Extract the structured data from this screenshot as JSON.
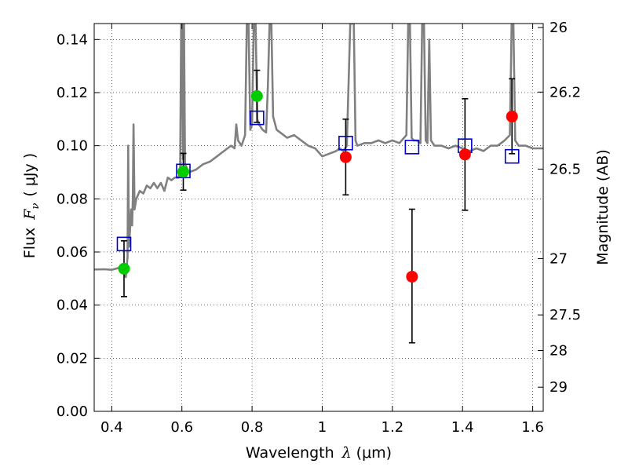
{
  "chart_data": {
    "type": "scatter",
    "xlabel": "Wavelength",
    "xlabel_symbol": "λ",
    "xlabel_unit": "(μm)",
    "ylabel": "Flux",
    "ylabel_symbol": "F",
    "ylabel_subscript": "ν",
    "ylabel_unit": "( μJy )",
    "y2label": "Magnitude (AB)",
    "xlim": [
      0.35,
      1.63
    ],
    "ylim": [
      0.0,
      0.146
    ],
    "grid": true,
    "x_ticks": [
      0.4,
      0.6,
      0.8,
      1.0,
      1.2,
      1.4,
      1.6
    ],
    "x_tick_labels": [
      "0.4",
      "0.6",
      "0.8",
      "1",
      "1.2",
      "1.4",
      "1.6"
    ],
    "y_ticks": [
      0.0,
      0.02,
      0.04,
      0.06,
      0.08,
      0.1,
      0.12,
      0.14
    ],
    "y_tick_labels": [
      "0.00",
      "0.02",
      "0.04",
      "0.06",
      "0.08",
      "0.10",
      "0.12",
      "0.14"
    ],
    "y2_ticks": [
      {
        "label": "26",
        "flux": 0.1445
      },
      {
        "label": "26.2",
        "flux": 0.1202
      },
      {
        "label": "26.5",
        "flux": 0.0912
      },
      {
        "label": "27",
        "flux": 0.0575
      },
      {
        "label": "27.5",
        "flux": 0.0363
      },
      {
        "label": "28",
        "flux": 0.0229
      },
      {
        "label": "29",
        "flux": 0.0091
      }
    ],
    "series": [
      {
        "name": "Model spectrum",
        "kind": "line",
        "color": "#808080",
        "points": [
          [
            0.35,
            0.0534
          ],
          [
            0.38,
            0.0535
          ],
          [
            0.4,
            0.0533
          ],
          [
            0.42,
            0.054
          ],
          [
            0.43,
            0.053
          ],
          [
            0.435,
            0.052
          ],
          [
            0.44,
            0.0505
          ],
          [
            0.445,
            0.058
          ],
          [
            0.447,
            0.1
          ],
          [
            0.449,
            0.062
          ],
          [
            0.452,
            0.068
          ],
          [
            0.455,
            0.076
          ],
          [
            0.458,
            0.07
          ],
          [
            0.46,
            0.08
          ],
          [
            0.462,
            0.108
          ],
          [
            0.465,
            0.076
          ],
          [
            0.47,
            0.08
          ],
          [
            0.48,
            0.083
          ],
          [
            0.49,
            0.082
          ],
          [
            0.5,
            0.085
          ],
          [
            0.51,
            0.084
          ],
          [
            0.52,
            0.086
          ],
          [
            0.53,
            0.084
          ],
          [
            0.54,
            0.086
          ],
          [
            0.55,
            0.083
          ],
          [
            0.56,
            0.088
          ],
          [
            0.57,
            0.087
          ],
          [
            0.58,
            0.088
          ],
          [
            0.59,
            0.088
          ],
          [
            0.595,
            0.09
          ],
          [
            0.598,
            0.146
          ],
          [
            0.6,
            0.146
          ],
          [
            0.603,
            0.095
          ],
          [
            0.606,
            0.146
          ],
          [
            0.609,
            0.093
          ],
          [
            0.62,
            0.09
          ],
          [
            0.64,
            0.091
          ],
          [
            0.66,
            0.093
          ],
          [
            0.68,
            0.094
          ],
          [
            0.7,
            0.096
          ],
          [
            0.72,
            0.098
          ],
          [
            0.74,
            0.1
          ],
          [
            0.75,
            0.099
          ],
          [
            0.755,
            0.108
          ],
          [
            0.76,
            0.102
          ],
          [
            0.77,
            0.1
          ],
          [
            0.78,
            0.104
          ],
          [
            0.785,
            0.146
          ],
          [
            0.79,
            0.146
          ],
          [
            0.795,
            0.106
          ],
          [
            0.8,
            0.108
          ],
          [
            0.805,
            0.146
          ],
          [
            0.81,
            0.146
          ],
          [
            0.815,
            0.11
          ],
          [
            0.82,
            0.108
          ],
          [
            0.83,
            0.106
          ],
          [
            0.84,
            0.105
          ],
          [
            0.845,
            0.122
          ],
          [
            0.85,
            0.146
          ],
          [
            0.855,
            0.146
          ],
          [
            0.86,
            0.111
          ],
          [
            0.87,
            0.106
          ],
          [
            0.88,
            0.105
          ],
          [
            0.9,
            0.103
          ],
          [
            0.92,
            0.104
          ],
          [
            0.94,
            0.102
          ],
          [
            0.96,
            0.1
          ],
          [
            0.98,
            0.099
          ],
          [
            1.0,
            0.096
          ],
          [
            1.02,
            0.097
          ],
          [
            1.04,
            0.098
          ],
          [
            1.05,
            0.099
          ],
          [
            1.06,
            0.098
          ],
          [
            1.07,
            0.1
          ],
          [
            1.08,
            0.146
          ],
          [
            1.09,
            0.146
          ],
          [
            1.095,
            0.102
          ],
          [
            1.1,
            0.1
          ],
          [
            1.12,
            0.101
          ],
          [
            1.14,
            0.101
          ],
          [
            1.16,
            0.102
          ],
          [
            1.18,
            0.101
          ],
          [
            1.2,
            0.102
          ],
          [
            1.22,
            0.101
          ],
          [
            1.24,
            0.104
          ],
          [
            1.245,
            0.146
          ],
          [
            1.25,
            0.146
          ],
          [
            1.255,
            0.103
          ],
          [
            1.26,
            0.102
          ],
          [
            1.27,
            0.102
          ],
          [
            1.28,
            0.101
          ],
          [
            1.285,
            0.146
          ],
          [
            1.29,
            0.146
          ],
          [
            1.295,
            0.102
          ],
          [
            1.3,
            0.101
          ],
          [
            1.305,
            0.14
          ],
          [
            1.31,
            0.102
          ],
          [
            1.32,
            0.1
          ],
          [
            1.34,
            0.1
          ],
          [
            1.36,
            0.099
          ],
          [
            1.38,
            0.1
          ],
          [
            1.4,
            0.099
          ],
          [
            1.42,
            0.098
          ],
          [
            1.44,
            0.099
          ],
          [
            1.46,
            0.098
          ],
          [
            1.48,
            0.1
          ],
          [
            1.5,
            0.1
          ],
          [
            1.52,
            0.102
          ],
          [
            1.535,
            0.104
          ],
          [
            1.54,
            0.146
          ],
          [
            1.545,
            0.146
          ],
          [
            1.55,
            0.102
          ],
          [
            1.56,
            0.1
          ],
          [
            1.58,
            0.1
          ],
          [
            1.6,
            0.099
          ],
          [
            1.63,
            0.099
          ]
        ]
      },
      {
        "name": "Model photometry",
        "kind": "open-square",
        "color": "#0000cc",
        "points": [
          [
            0.435,
            0.063
          ],
          [
            0.604,
            0.0905
          ],
          [
            0.814,
            0.1105
          ],
          [
            1.067,
            0.101
          ],
          [
            1.256,
            0.0995
          ],
          [
            1.407,
            0.1
          ],
          [
            1.541,
            0.096
          ]
        ]
      },
      {
        "name": "Observed (green)",
        "kind": "filled-circle",
        "color": "#00cc00",
        "points": [
          {
            "x": 0.435,
            "y": 0.0537,
            "lo": 0.0432,
            "hi": 0.0642
          },
          {
            "x": 0.604,
            "y": 0.0902,
            "lo": 0.0833,
            "hi": 0.0971
          },
          {
            "x": 0.814,
            "y": 0.1187,
            "lo": 0.1088,
            "hi": 0.1284
          }
        ]
      },
      {
        "name": "Observed (red)",
        "kind": "filled-circle",
        "color": "#ff0000",
        "points": [
          {
            "x": 1.067,
            "y": 0.0957,
            "lo": 0.0815,
            "hi": 0.11
          },
          {
            "x": 1.256,
            "y": 0.0507,
            "lo": 0.0258,
            "hi": 0.0761
          },
          {
            "x": 1.407,
            "y": 0.0967,
            "lo": 0.0757,
            "hi": 0.1177
          },
          {
            "x": 1.541,
            "y": 0.111,
            "lo": 0.097,
            "hi": 0.1252
          }
        ]
      }
    ]
  }
}
